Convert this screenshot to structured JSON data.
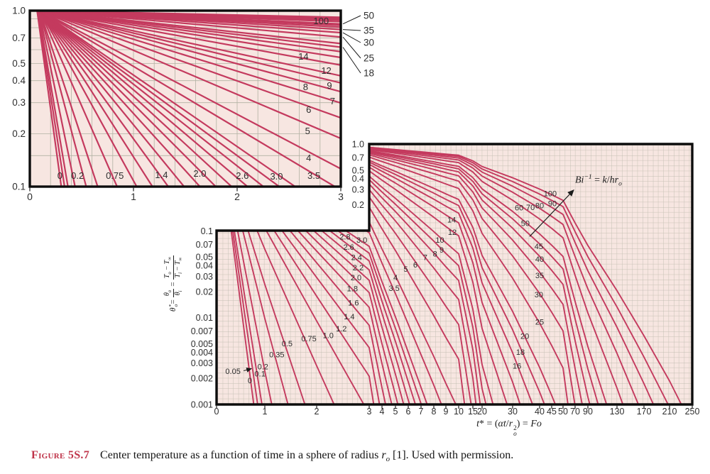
{
  "page": {
    "background": "#ffffff"
  },
  "colors": {
    "curve": "#c43a5e",
    "plot_bg": "#f7e6e1",
    "grid_fine": "#c9c2b6",
    "grid_major": "#b2b2a4",
    "border": "#0d0d0d",
    "tick_text": "#2e2e2e",
    "curve_label_text": "#3b3b3b",
    "caption_accent": "#bf3349",
    "annotation_line": "#1c1c1c"
  },
  "figure": {
    "caption_label": "Figure 5S.7",
    "caption_body": [
      {
        "t": "Center temperature as a function of time in a sphere of radius "
      },
      {
        "t": "r",
        "i": 1
      },
      {
        "t": "o",
        "s": "sub",
        "i": 1
      },
      {
        "t": " [1]. Used with permission."
      }
    ]
  },
  "labels": {
    "x_axis": [
      {
        "t": "t",
        "i": 1
      },
      {
        "t": "* = ("
      },
      {
        "t": "αt",
        "i": 1
      },
      {
        "t": "/"
      },
      {
        "t": "r",
        "i": 1
      },
      {
        "ss": {
          "sup": "2",
          "sub": "o"
        }
      },
      {
        "t": ") = "
      },
      {
        "t": "Fo",
        "i": 1
      }
    ],
    "y_axis": [
      {
        "t": "θ",
        "i": 1
      },
      {
        "ss": {
          "sup": "*",
          "sub": "o"
        }
      },
      {
        "t": " = "
      },
      {
        "frac": {
          "n": [
            {
              "t": "θ",
              "i": 1
            },
            {
              "t": "o",
              "s": "sub",
              "i": 1
            }
          ],
          "d": [
            {
              "t": "θ",
              "i": 1
            },
            {
              "t": "i",
              "s": "sub",
              "i": 1
            }
          ]
        }
      },
      {
        "t": " = "
      },
      {
        "frac": {
          "n": [
            {
              "t": "T",
              "i": 1
            },
            {
              "t": "o",
              "s": "sub",
              "i": 1
            },
            {
              "t": " − "
            },
            {
              "t": "T",
              "i": 1
            },
            {
              "t": "∞",
              "s": "sub"
            }
          ],
          "d": [
            {
              "t": "T",
              "i": 1
            },
            {
              "t": "i",
              "s": "sub",
              "i": 1
            },
            {
              "t": " − "
            },
            {
              "t": "T",
              "i": 1
            },
            {
              "t": "∞",
              "s": "sub"
            }
          ]
        }
      }
    ],
    "bi_annotation": [
      {
        "t": "Bi",
        "i": 1
      },
      {
        "t": "−1",
        "s": "sup",
        "i": 1
      },
      {
        "t": " = "
      },
      {
        "t": "k",
        "i": 1
      },
      {
        "t": "/"
      },
      {
        "t": "hr",
        "i": 1
      },
      {
        "t": "o",
        "s": "sub",
        "i": 1
      }
    ]
  },
  "chart_data": [
    {
      "type": "line",
      "role": "inset expanded view for small Fourier number",
      "x_scale": "linear",
      "x_range": [
        0,
        3
      ],
      "x_ticks": [
        "0",
        "1",
        "2",
        "3"
      ],
      "y_scale": "log",
      "y_range": [
        0.1,
        1.0
      ],
      "y_ticks": [
        "1.0",
        "0.7",
        "0.5",
        "0.4",
        "0.3",
        "0.2",
        "0.1"
      ],
      "grid": true,
      "grid_y_lines": [
        0.9,
        0.8,
        0.7,
        0.6,
        0.5,
        0.4,
        0.3,
        0.2,
        0.15
      ],
      "grid_x_step": 0.2,
      "series_parameter": "Bi^-1 = k/(h r_o)",
      "bi_inverse_values": [
        0,
        0.05,
        0.1,
        0.2,
        0.35,
        0.5,
        0.75,
        1.0,
        1.2,
        1.4,
        1.6,
        1.8,
        2.0,
        2.2,
        2.4,
        2.6,
        2.8,
        3.0,
        3.5,
        4,
        5,
        6,
        7,
        8,
        9,
        10,
        12,
        14,
        16,
        18,
        20,
        25,
        30,
        35,
        40,
        45,
        50,
        60,
        70,
        80,
        90,
        100
      ],
      "curve_model": "theta0* = C1 exp(-zeta1^2 Fo); zeta1 solves 1 - zeta cot(zeta) = Bi (sphere, one-term)",
      "curve_labels": [
        {
          "v": "0",
          "t": 0.29,
          "th": 0.115
        },
        {
          "v": "0.2",
          "t": 0.46,
          "th": 0.115
        },
        {
          "v": "0.75",
          "t": 0.82,
          "th": 0.115
        },
        {
          "v": "1.4",
          "t": 1.27,
          "th": 0.116
        },
        {
          "v": "2.0",
          "t": 1.64,
          "th": 0.118
        },
        {
          "v": "2.6",
          "t": 2.05,
          "th": 0.115
        },
        {
          "v": "3.0",
          "t": 2.38,
          "th": 0.114
        },
        {
          "v": "3.5",
          "t": 2.74,
          "th": 0.115
        },
        {
          "v": "4",
          "t": 2.69,
          "th": 0.145
        },
        {
          "v": "5",
          "t": 2.68,
          "th": 0.206
        },
        {
          "v": "6",
          "t": 2.69,
          "th": 0.272
        },
        {
          "v": "7",
          "t": 2.92,
          "th": 0.305
        },
        {
          "v": "8",
          "t": 2.66,
          "th": 0.367
        },
        {
          "v": "9",
          "t": 2.89,
          "th": 0.374
        },
        {
          "v": "12",
          "t": 2.86,
          "th": 0.454
        },
        {
          "v": "14",
          "t": 2.64,
          "th": 0.547
        },
        {
          "v": "100",
          "t": 2.81,
          "th": 0.87
        }
      ],
      "callout_labels": [
        {
          "v": "50",
          "bi": 50
        },
        {
          "v": "35",
          "bi": 35
        },
        {
          "v": "30",
          "bi": 30
        },
        {
          "v": "25",
          "bi": 25
        },
        {
          "v": "18",
          "bi": 18
        }
      ]
    },
    {
      "type": "line",
      "role": "main chart",
      "x_scale": "piecewise-linear (non-uniform segments)",
      "x_range": [
        0,
        250
      ],
      "x_ticks": [
        "0",
        "1",
        "2",
        "3",
        "4",
        "5",
        "6",
        "7",
        "8",
        "9",
        "10",
        "15",
        "20",
        "30",
        "40",
        "45",
        "50",
        "70",
        "90",
        "130",
        "170",
        "210",
        "250"
      ],
      "y_scale": "log",
      "y_range": [
        0.001,
        1.0
      ],
      "y_ticks_upper": [
        "1.0",
        "0.7",
        "0.5",
        "0.4",
        "0.3",
        "0.2"
      ],
      "y_ticks_lower": [
        "0.1",
        "0.07",
        "0.05",
        "0.04",
        "0.03",
        "0.02",
        "0.01",
        "0.007",
        "0.005",
        "0.004",
        "0.003",
        "0.002",
        "0.001"
      ],
      "xlabel_plain": "t* = (alpha t / r_o^2) = Fo",
      "ylabel_plain": "theta_o* = theta_o/theta_i = (T_o - Tinf)/(T_i - Tinf)",
      "grid": true,
      "series_parameter": "Bi^-1 = k/(h r_o)",
      "bi_inverse_values": [
        0,
        0.05,
        0.1,
        0.2,
        0.35,
        0.5,
        0.75,
        1.0,
        1.2,
        1.4,
        1.6,
        1.8,
        2.0,
        2.2,
        2.4,
        2.6,
        2.8,
        3.0,
        3.5,
        4,
        5,
        6,
        7,
        8,
        9,
        10,
        12,
        14,
        16,
        18,
        20,
        25,
        30,
        35,
        40,
        45,
        50,
        60,
        70,
        80,
        90,
        100
      ],
      "curve_model": "theta0* = C1 exp(-zeta1^2 Fo); zeta1 solves 1 - zeta cot(zeta) = Bi (sphere, one-term)",
      "curve_labels": [
        {
          "v": "0.05",
          "t": 0.34,
          "th": 0.0024,
          "arrow": true
        },
        {
          "v": "0",
          "t": 0.69,
          "th": 0.00187
        },
        {
          "v": "0.1",
          "t": 0.9,
          "th": 0.00225
        },
        {
          "v": "0.2",
          "t": 0.96,
          "th": 0.0027
        },
        {
          "v": "0.35",
          "t": 1.23,
          "th": 0.00375
        },
        {
          "v": "0.5",
          "t": 1.43,
          "th": 0.005
        },
        {
          "v": "0.75",
          "t": 1.85,
          "th": 0.0057
        },
        {
          "v": "1.0",
          "t": 2.22,
          "th": 0.0062
        },
        {
          "v": "1.2",
          "t": 2.47,
          "th": 0.0074
        },
        {
          "v": "1.4",
          "t": 2.62,
          "th": 0.0102
        },
        {
          "v": "1.6",
          "t": 2.7,
          "th": 0.0148
        },
        {
          "v": "1.8",
          "t": 2.68,
          "th": 0.0214
        },
        {
          "v": "2.0",
          "t": 2.75,
          "th": 0.0288
        },
        {
          "v": "2.2",
          "t": 2.79,
          "th": 0.0373
        },
        {
          "v": "2.4",
          "t": 2.76,
          "th": 0.049
        },
        {
          "v": "2.6",
          "t": 2.61,
          "th": 0.0647
        },
        {
          "v": "2.8",
          "t": 2.54,
          "th": 0.085
        },
        {
          "v": "3.0",
          "t": 2.86,
          "th": 0.0782
        },
        {
          "v": "3.5",
          "t": 4.9,
          "th": 0.0217
        },
        {
          "v": "4",
          "t": 5.0,
          "th": 0.0288
        },
        {
          "v": "5",
          "t": 5.8,
          "th": 0.036
        },
        {
          "v": "6",
          "t": 6.55,
          "th": 0.0405
        },
        {
          "v": "7",
          "t": 7.33,
          "th": 0.049
        },
        {
          "v": "8",
          "t": 8.1,
          "th": 0.054
        },
        {
          "v": "9",
          "t": 8.65,
          "th": 0.06
        },
        {
          "v": "10",
          "t": 8.5,
          "th": 0.078
        },
        {
          "v": "12",
          "t": 9.5,
          "th": 0.096
        },
        {
          "v": "14",
          "t": 9.45,
          "th": 0.133
        },
        {
          "v": "16",
          "t": 31.6,
          "th": 0.00277
        },
        {
          "v": "18",
          "t": 32.9,
          "th": 0.004
        },
        {
          "v": "20",
          "t": 34.5,
          "th": 0.0061
        },
        {
          "v": "25",
          "t": 40,
          "th": 0.0089
        },
        {
          "v": "30",
          "t": 39.7,
          "th": 0.0183
        },
        {
          "v": "35",
          "t": 40,
          "th": 0.0305
        },
        {
          "v": "40",
          "t": 40,
          "th": 0.047
        },
        {
          "v": "45",
          "t": 39.7,
          "th": 0.066
        },
        {
          "v": "50",
          "t": 34.7,
          "th": 0.121
        },
        {
          "v": "60",
          "t": 32.4,
          "th": 0.183
        },
        {
          "v": "70",
          "t": 36.6,
          "th": 0.186
        },
        {
          "v": "80",
          "t": 40,
          "th": 0.194
        },
        {
          "v": "90",
          "t": 45.3,
          "th": 0.205
        },
        {
          "v": "100",
          "t": 44.4,
          "th": 0.267
        }
      ],
      "annotation": {
        "text_plain": "Bi^-1 = k/hr_o",
        "arrow_from": {
          "t": 36.3,
          "th": 0.086
        },
        "arrow_to": {
          "t": 67.6,
          "th": 0.295
        }
      }
    }
  ]
}
